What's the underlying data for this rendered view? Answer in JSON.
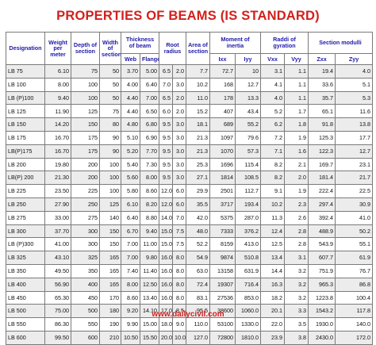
{
  "title": "PROPERTIES OF BEAMS (IS STANDARD)",
  "headers": {
    "designation": "Designation",
    "weight": "Weight per meter",
    "depth": "Depth of section",
    "width": "Width of section",
    "thickness": "Thickness of beam",
    "web": "Web",
    "flange": "Flange",
    "root_radius": "Root radius",
    "area": "Area of section",
    "moment": "Moment of inertia",
    "ixx": "Ixx",
    "iyy": "Iyy",
    "gyration": "Raddi of gyration",
    "vxx": "Vxx",
    "vyy": "Vyy",
    "moduli": "Section modulli",
    "zxx": "Zxx",
    "zyy": "Zyy"
  },
  "rows": [
    [
      "LB 75",
      "6.10",
      "75",
      "50",
      "3.70",
      "5.00",
      "6.5",
      "2.0",
      "7.7",
      "72.7",
      "10",
      "3.1",
      "1.1",
      "19.4",
      "4.0"
    ],
    [
      "LB 100",
      "8.00",
      "100",
      "50",
      "4.00",
      "6.40",
      "7.0",
      "3.0",
      "10.2",
      "168",
      "12.7",
      "4.1",
      "1.1",
      "33.6",
      "5.1"
    ],
    [
      "LB (P)100",
      "9.40",
      "100",
      "50",
      "4.40",
      "7.00",
      "6.5",
      "2.0",
      "11.0",
      "178",
      "13.3",
      "4.0",
      "1.1",
      "35.7",
      "5.3"
    ],
    [
      "LB 125",
      "11.90",
      "125",
      "75",
      "4.40",
      "6.50",
      "6.0",
      "2.0",
      "15.2",
      "407",
      "43.4",
      "5.2",
      "1.7",
      "65.1",
      "11.6"
    ],
    [
      "LB 150",
      "14.20",
      "150",
      "80",
      "4.80",
      "6.80",
      "9.5",
      "3.0",
      "18.1",
      "689",
      "55.2",
      "6.2",
      "1.8",
      "91.8",
      "13.8"
    ],
    [
      "LB 175",
      "16.70",
      "175",
      "90",
      "5.10",
      "6.90",
      "9.5",
      "3.0",
      "21.3",
      "1097",
      "79.6",
      "7.2",
      "1.9",
      "125.3",
      "17.7"
    ],
    [
      "LB(P)175",
      "16.70",
      "175",
      "90",
      "5.20",
      "7.70",
      "9.5",
      "3.0",
      "21.3",
      "1070",
      "57.3",
      "7.1",
      "1.6",
      "122.3",
      "12.7"
    ],
    [
      "LB 200",
      "19.80",
      "200",
      "100",
      "5.40",
      "7.30",
      "9.5",
      "3.0",
      "25.3",
      "1696",
      "115.4",
      "8.2",
      "2.1",
      "169.7",
      "23.1"
    ],
    [
      "LB(P) 200",
      "21.30",
      "200",
      "100",
      "5.60",
      "8.00",
      "9.5",
      "3.0",
      "27.1",
      "1814",
      "108.5",
      "8.2",
      "2.0",
      "181.4",
      "21.7"
    ],
    [
      "LB 225",
      "23.50",
      "225",
      "100",
      "5.80",
      "8.60",
      "12.0",
      "6.0",
      "29.9",
      "2501",
      "112.7",
      "9.1",
      "1.9",
      "222.4",
      "22.5"
    ],
    [
      "LB 250",
      "27.90",
      "250",
      "125",
      "6.10",
      "8.20",
      "12.0",
      "6.0",
      "35.5",
      "3717",
      "193.4",
      "10.2",
      "2.3",
      "297.4",
      "30.9"
    ],
    [
      "LB 275",
      "33.00",
      "275",
      "140",
      "6.40",
      "8.80",
      "14.0",
      "7.0",
      "42.0",
      "5375",
      "287.0",
      "11.3",
      "2.6",
      "392.4",
      "41.0"
    ],
    [
      "LB 300",
      "37.70",
      "300",
      "150",
      "6.70",
      "9.40",
      "15.0",
      "7.5",
      "48.0",
      "7333",
      "376.2",
      "12.4",
      "2.8",
      "488.9",
      "50.2"
    ],
    [
      "LB (P)300",
      "41.00",
      "300",
      "150",
      "7.00",
      "11.00",
      "15.0",
      "7.5",
      "52.2",
      "8159",
      "413.0",
      "12.5",
      "2.8",
      "543.9",
      "55.1"
    ],
    [
      "LB 325",
      "43.10",
      "325",
      "165",
      "7.00",
      "9.80",
      "16.0",
      "8.0",
      "54.9",
      "9874",
      "510.8",
      "13.4",
      "3.1",
      "607.7",
      "61.9"
    ],
    [
      "LB 350",
      "49.50",
      "350",
      "165",
      "7.40",
      "11.40",
      "16.0",
      "8.0",
      "63.0",
      "13158",
      "631.9",
      "14.4",
      "3.2",
      "751.9",
      "76.7"
    ],
    [
      "LB 400",
      "56.90",
      "400",
      "165",
      "8.00",
      "12.50",
      "16.0",
      "8.0",
      "72.4",
      "19307",
      "716.4",
      "16.3",
      "3.2",
      "965.3",
      "86.8"
    ],
    [
      "LB 450",
      "65.30",
      "450",
      "170",
      "8.60",
      "13.40",
      "16.0",
      "8.0",
      "83.1",
      "27536",
      "853.0",
      "18.2",
      "3.2",
      "1223.8",
      "100.4"
    ],
    [
      "LB 500",
      "75.00",
      "500",
      "180",
      "9.20",
      "14.10",
      "17.0",
      "8.5",
      "95.5",
      "38600",
      "1060.0",
      "20.1",
      "3.3",
      "1543.2",
      "117.8"
    ],
    [
      "LB 550",
      "86.30",
      "550",
      "190",
      "9.90",
      "15.00",
      "18.0",
      "9.0",
      "110.0",
      "53100",
      "1330.0",
      "22.0",
      "3.5",
      "1930.0",
      "140.0"
    ],
    [
      "LB 600",
      "99.50",
      "600",
      "210",
      "10.50",
      "15.50",
      "20.0",
      "10.0",
      "127.0",
      "72800",
      "1810.0",
      "23.9",
      "3.8",
      "2430.0",
      "172.0"
    ]
  ],
  "footer": "www.dailycivil.com"
}
